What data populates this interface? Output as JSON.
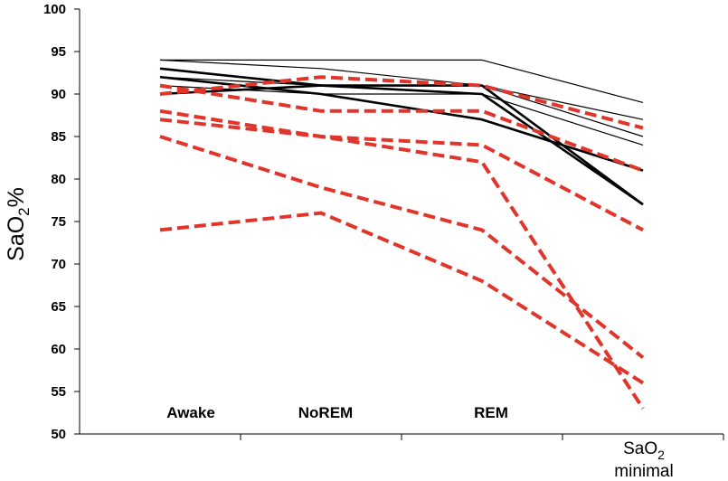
{
  "chart_data": {
    "type": "line",
    "categories": [
      "Awake",
      "NoREM",
      "REM",
      "SaO2 minimal"
    ],
    "category_labels": [
      {
        "text": "Awake"
      },
      {
        "text": "NoREM"
      },
      {
        "text": "REM"
      }
    ],
    "x_last_label": {
      "main": "SaO",
      "sub": "2",
      "line2": "minimal"
    },
    "ylabel": {
      "main": "SaO",
      "sub": "2",
      "suffix": "%"
    },
    "title": "",
    "xlabel": "",
    "ylim": [
      50,
      100
    ],
    "yticks": [
      50,
      55,
      60,
      65,
      70,
      75,
      80,
      85,
      90,
      95,
      100
    ],
    "grid": false,
    "legend": "none",
    "colors": {
      "black_series": "#000000",
      "red_series": "#e0352b"
    },
    "series": [
      {
        "group": "black",
        "weight": "thin",
        "values": [
          94,
          94,
          94,
          89
        ]
      },
      {
        "group": "black",
        "weight": "thin",
        "values": [
          94,
          93,
          91,
          87
        ]
      },
      {
        "group": "black",
        "weight": "thin",
        "values": [
          92,
          91,
          91,
          85
        ]
      },
      {
        "group": "black",
        "weight": "thin",
        "values": [
          91,
          90,
          90,
          84
        ]
      },
      {
        "group": "black",
        "weight": "thick",
        "values": [
          93,
          91,
          90,
          77
        ]
      },
      {
        "group": "black",
        "weight": "thick",
        "values": [
          92,
          90,
          87,
          81
        ]
      },
      {
        "group": "black",
        "weight": "thick",
        "values": [
          90,
          91,
          91,
          77
        ]
      },
      {
        "group": "red",
        "values": [
          91,
          88,
          88,
          81
        ]
      },
      {
        "group": "red",
        "values": [
          90,
          92,
          91,
          86
        ]
      },
      {
        "group": "red",
        "values": [
          88,
          85,
          84,
          74
        ]
      },
      {
        "group": "red",
        "values": [
          87,
          85,
          82,
          53
        ]
      },
      {
        "group": "red",
        "values": [
          85,
          79,
          74,
          59
        ]
      },
      {
        "group": "red",
        "values": [
          74,
          76,
          68,
          56
        ]
      }
    ]
  }
}
